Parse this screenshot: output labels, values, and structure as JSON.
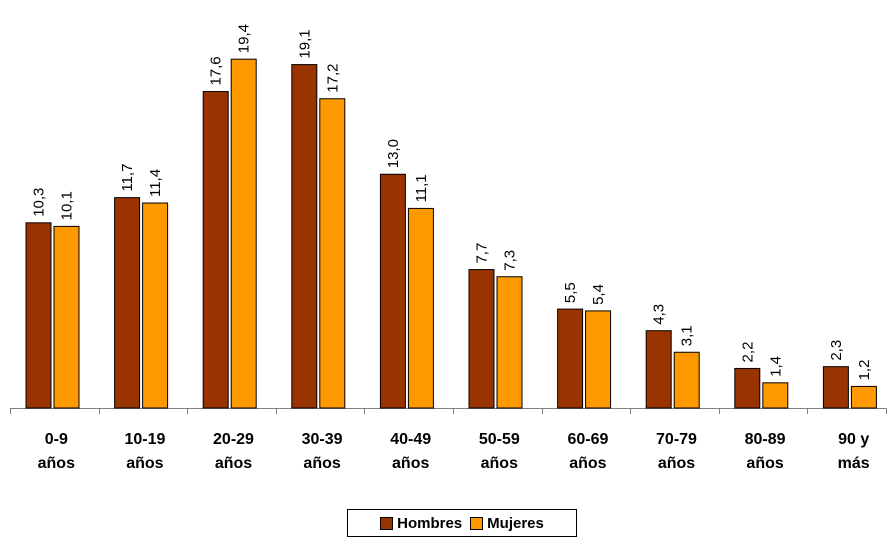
{
  "chart_data": {
    "type": "bar",
    "categories": [
      [
        "0-9",
        "años"
      ],
      [
        "10-19",
        "años"
      ],
      [
        "20-29",
        "años"
      ],
      [
        "30-39",
        "años"
      ],
      [
        "40-49",
        "años"
      ],
      [
        "50-59",
        "años"
      ],
      [
        "60-69",
        "años"
      ],
      [
        "70-79",
        "años"
      ],
      [
        "80-89",
        "años"
      ],
      [
        "90 y",
        "más"
      ]
    ],
    "series": [
      {
        "name": "Hombres",
        "color": "#993300",
        "values": [
          10.3,
          11.7,
          17.6,
          19.1,
          13.0,
          7.7,
          5.5,
          4.3,
          2.2,
          2.3
        ],
        "labels": [
          "10,3",
          "11,7",
          "17,6",
          "19,1",
          "13,0",
          "7,7",
          "5,5",
          "4,3",
          "2,2",
          "2,3"
        ]
      },
      {
        "name": "Mujeres",
        "color": "#FF9900",
        "values": [
          10.1,
          11.4,
          19.4,
          17.2,
          11.1,
          7.3,
          5.4,
          3.1,
          1.4,
          1.2
        ],
        "labels": [
          "10,1",
          "11,4",
          "19,4",
          "17,2",
          "11,1",
          "7,3",
          "5,4",
          "3,1",
          "1,4",
          "1,2"
        ]
      }
    ],
    "ylim": [
      0,
      20.3
    ],
    "grid": false,
    "legend_position": "bottom"
  }
}
